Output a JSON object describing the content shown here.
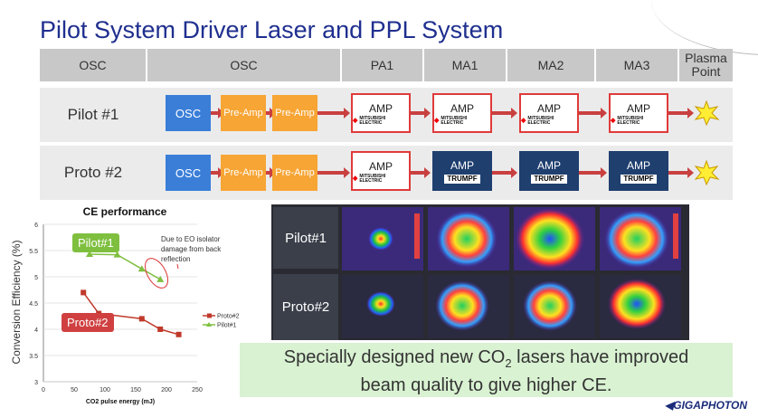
{
  "title": "Pilot System Driver Laser and PPL System",
  "table": {
    "headers": [
      "OSC",
      "OSC",
      "PA1",
      "MA1",
      "MA2",
      "MA3",
      "Plasma Point"
    ],
    "rows": [
      {
        "label": "Pilot #1",
        "osc": "OSC",
        "pre1": "Pre-Amp",
        "pre2": "Pre-Amp",
        "amps": [
          {
            "text": "AMP",
            "brand": "MITSUBISHI ELECTRIC"
          },
          {
            "text": "AMP",
            "brand": "MITSUBISHI ELECTRIC"
          },
          {
            "text": "AMP",
            "brand": "MITSUBISHI ELECTRIC"
          },
          {
            "text": "AMP",
            "brand": "MITSUBISHI ELECTRIC"
          }
        ]
      },
      {
        "label": "Proto #2",
        "osc": "OSC",
        "pre1": "Pre-Amp",
        "pre2": "Pre-Amp",
        "amps": [
          {
            "text": "AMP",
            "brand": "MITSUBISHI ELECTRIC"
          },
          {
            "text": "AMP",
            "brand": "TRUMPF"
          },
          {
            "text": "AMP",
            "brand": "TRUMPF"
          },
          {
            "text": "AMP",
            "brand": "TRUMPF"
          }
        ]
      }
    ]
  },
  "chart_data": {
    "type": "line",
    "title": "CE performance",
    "xlabel": "CO2 pulse energy (mJ)",
    "ylabel": "Conversion Efficiency (%)",
    "xlim": [
      0,
      250
    ],
    "ylim": [
      3,
      6
    ],
    "xticks": [
      0,
      50,
      100,
      150,
      200,
      250
    ],
    "yticks": [
      3,
      3.5,
      4,
      4.5,
      5,
      5.5,
      6
    ],
    "series": [
      {
        "name": "Proto#2",
        "color": "#c0392b",
        "marker": "square",
        "x": [
          65,
          90,
          160,
          190,
          220
        ],
        "y": [
          4.7,
          4.3,
          4.2,
          4.0,
          3.9
        ]
      },
      {
        "name": "Pilot#1",
        "color": "#7fbf3f",
        "marker": "triangle",
        "x": [
          75,
          120,
          160,
          190
        ],
        "y": [
          5.43,
          5.42,
          5.15,
          4.95
        ]
      }
    ],
    "callouts": [
      {
        "text": "Pilot#1",
        "color": "#7fbf3f"
      },
      {
        "text": "Proto#2",
        "color": "#d04040"
      }
    ],
    "annotation": "Due to EO isolator damage from back reflection"
  },
  "beam": {
    "labels": [
      "Pilot#1",
      "Proto#2"
    ]
  },
  "message": {
    "line1a": "Specially designed new CO",
    "sub": "2",
    "line1b": " lasers have improved",
    "line2": "beam quality  to give higher CE."
  },
  "logo": "GIGAPHOTON"
}
